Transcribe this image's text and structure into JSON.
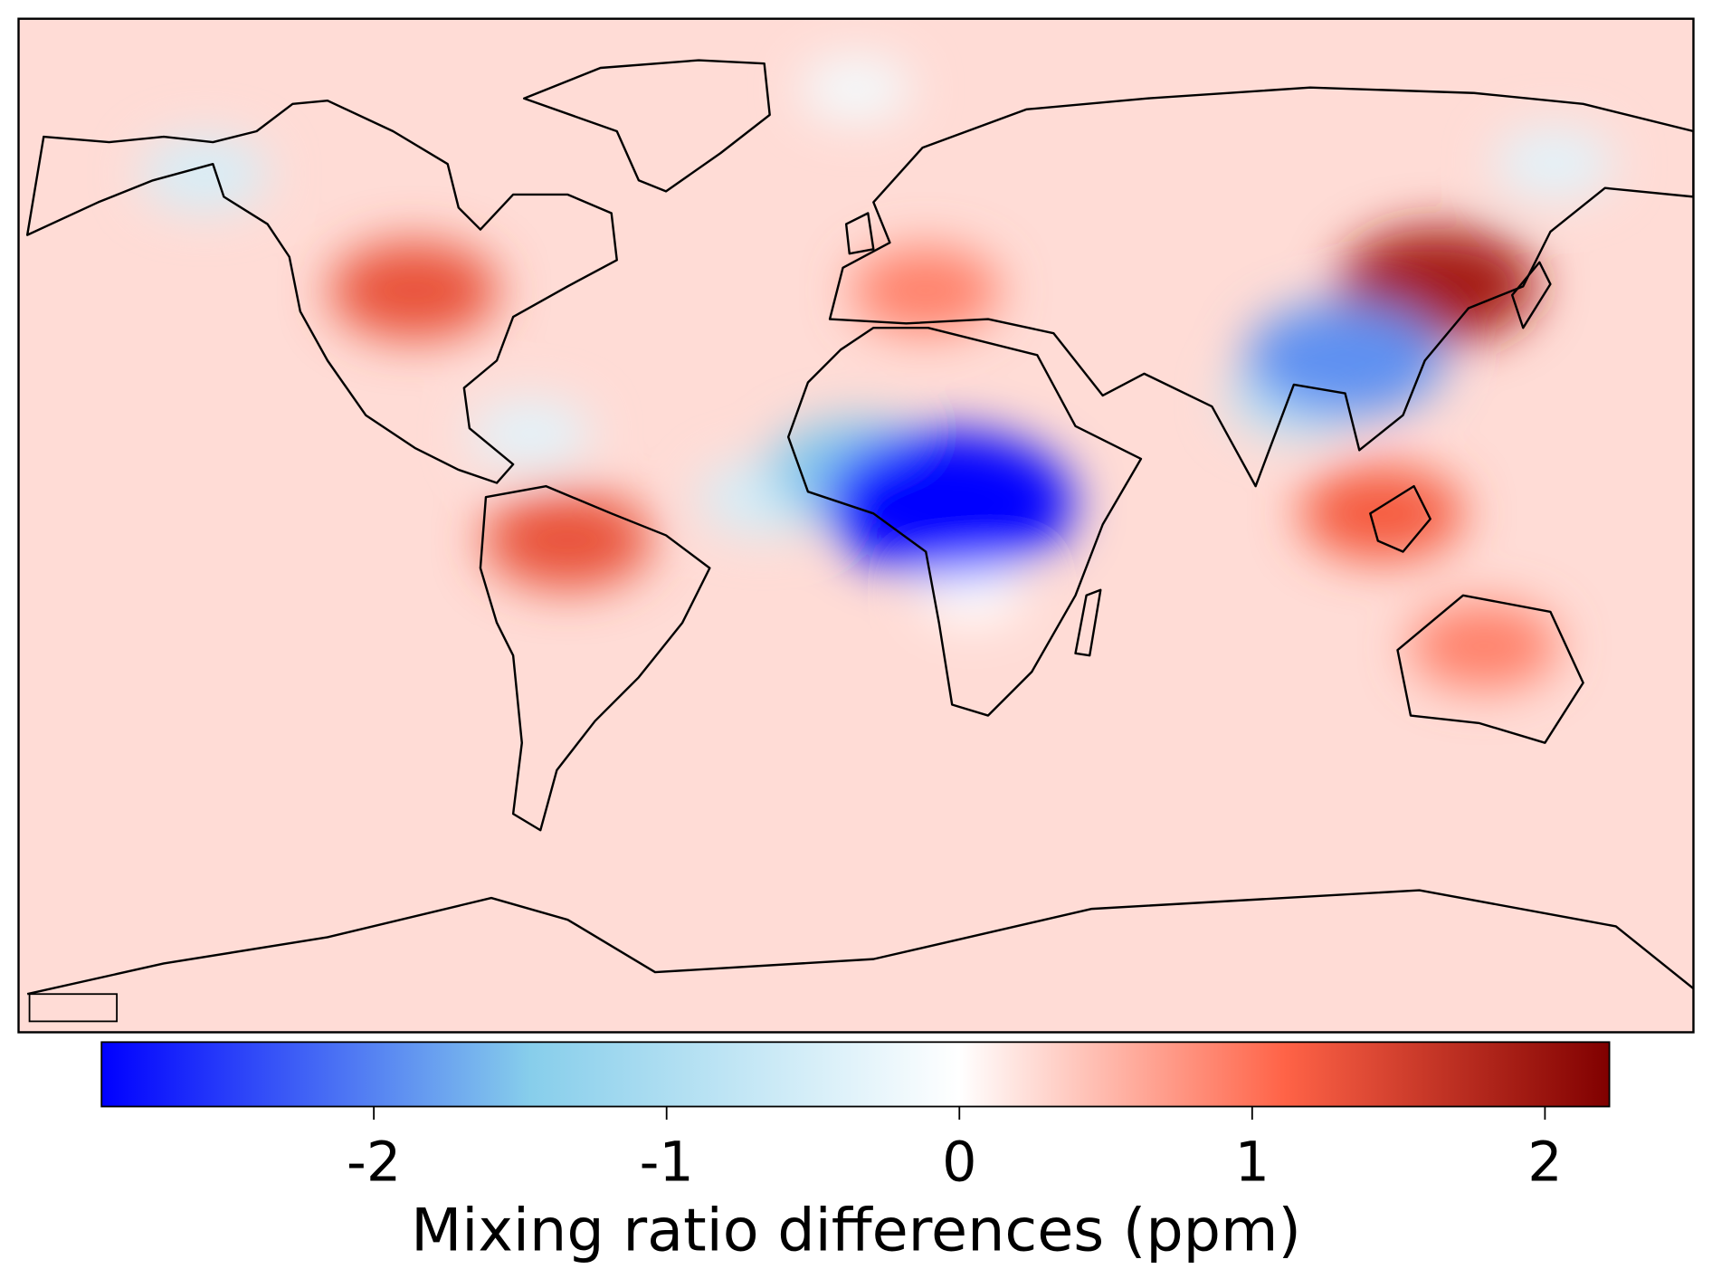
{
  "chart_data": {
    "type": "map",
    "colorbar_label": "Mixing ratio differences (ppm)",
    "clim": [
      -2.93,
      2.22
    ],
    "ticks": [
      -2,
      -1,
      0,
      1,
      2
    ],
    "colormap": [
      "#0000ff",
      "#87ceeb",
      "#ffffff",
      "#ff6347",
      "#800000"
    ],
    "background": 0.25,
    "hotspots": [
      {
        "lon": 0,
        "lat": 80,
        "value": -0.15
      },
      {
        "lon": -140,
        "lat": 64,
        "value": -0.5
      },
      {
        "lon": 150,
        "lat": 66,
        "value": -0.35
      },
      {
        "lon": -70,
        "lat": 15,
        "value": -0.35
      },
      {
        "lon": -20,
        "lat": 3,
        "value": -0.5
      },
      {
        "lon": 25,
        "lat": -15,
        "value": 0
      },
      {
        "lon": 95,
        "lat": 22,
        "value": -0.8
      },
      {
        "lon": 15,
        "lat": 42,
        "value": 0.9
      },
      {
        "lon": 135,
        "lat": -25,
        "value": 0.9
      },
      {
        "lon": -95,
        "lat": 42,
        "value": 1.3
      },
      {
        "lon": -62,
        "lat": -5,
        "value": 1.3
      },
      {
        "lon": 113,
        "lat": 0,
        "value": 1.2
      },
      {
        "lon": 125,
        "lat": 43,
        "value": 1.9
      },
      {
        "lon": 0,
        "lat": 8,
        "value": -1.5
      },
      {
        "lon": 105,
        "lat": 29,
        "value": -1.9
      },
      {
        "lon": 20,
        "lat": 2,
        "value": -2.9
      }
    ]
  }
}
